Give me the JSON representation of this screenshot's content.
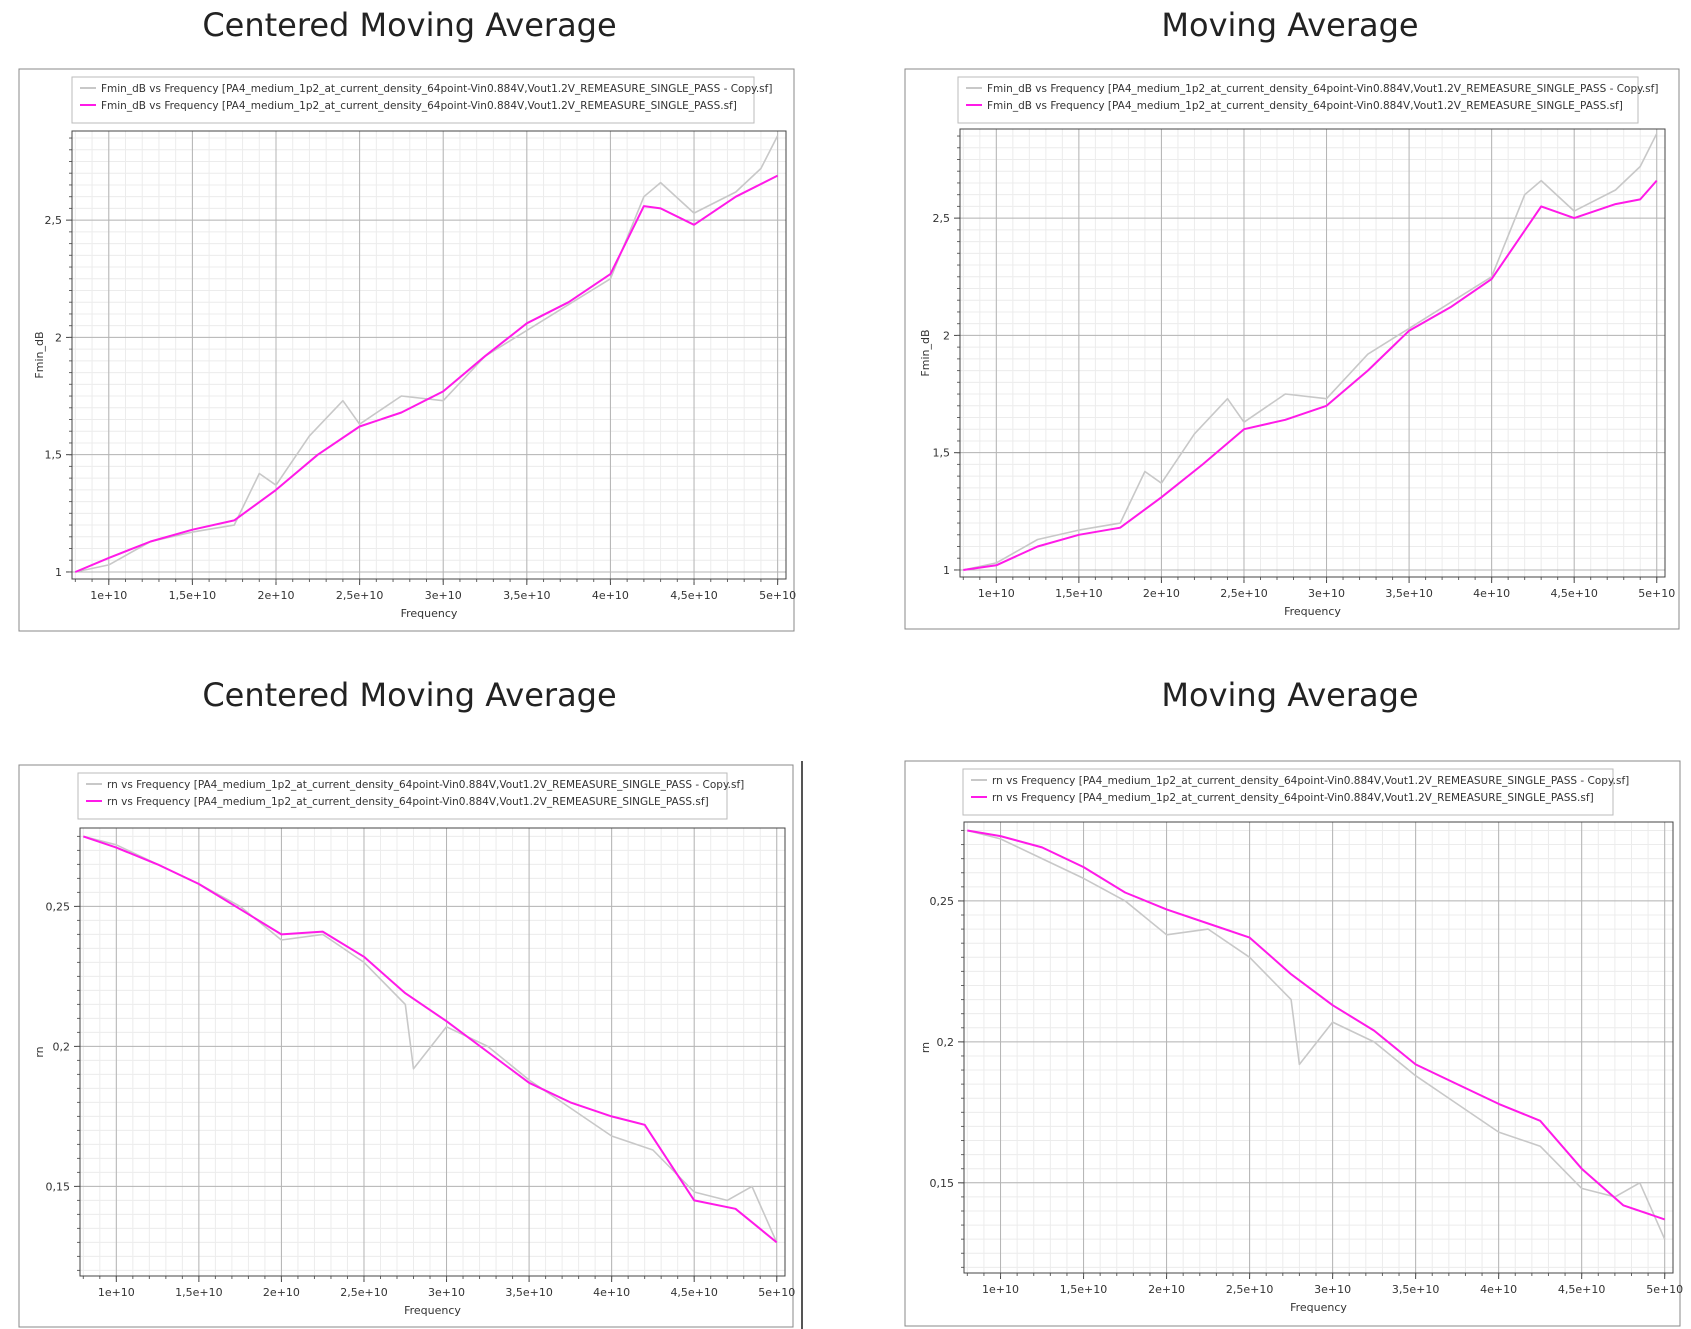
{
  "chart_data": [
    {
      "type": "line",
      "title": "Centered Moving Average",
      "xlabel": "Frequency",
      "ylabel": "Fmin_dB",
      "xlim": [
        7800000000.0,
        50500000000.0
      ],
      "ylim": [
        0.97,
        2.88
      ],
      "x_ticks": [
        "1e+10",
        "1,5e+10",
        "2e+10",
        "2,5e+10",
        "3e+10",
        "3,5e+10",
        "4e+10",
        "4,5e+10",
        "5e+10"
      ],
      "y_ticks": [
        "1",
        "1,5",
        "2",
        "2,5"
      ],
      "grid": true,
      "legend_position": "top-left",
      "series": [
        {
          "name": "Fmin_dB vs Frequency [PA4_medium_1p2_at_current_density_64point-Vin0.884V,Vout1.2V_REMEASURE_SINGLE_PASS - Copy.sf]",
          "color": "#c8c8c8",
          "x": [
            8000000000.0,
            10000000000.0,
            12500000000.0,
            15000000000.0,
            17500000000.0,
            19000000000.0,
            20000000000.0,
            22000000000.0,
            24000000000.0,
            25000000000.0,
            27500000000.0,
            30000000000.0,
            32500000000.0,
            35000000000.0,
            37500000000.0,
            40000000000.0,
            42000000000.0,
            43000000000.0,
            45000000000.0,
            47500000000.0,
            49000000000.0,
            50000000000.0
          ],
          "y": [
            1.0,
            1.03,
            1.13,
            1.17,
            1.2,
            1.42,
            1.37,
            1.58,
            1.73,
            1.63,
            1.75,
            1.73,
            1.92,
            2.03,
            2.14,
            2.25,
            2.6,
            2.66,
            2.53,
            2.62,
            2.72,
            2.86
          ]
        },
        {
          "name": "Fmin_dB vs Frequency [PA4_medium_1p2_at_current_density_64point-Vin0.884V,Vout1.2V_REMEASURE_SINGLE_PASS.sf]",
          "color": "#ff1ae8",
          "x": [
            8000000000.0,
            10000000000.0,
            12500000000.0,
            15000000000.0,
            17500000000.0,
            20000000000.0,
            22500000000.0,
            25000000000.0,
            27500000000.0,
            30000000000.0,
            32500000000.0,
            35000000000.0,
            37500000000.0,
            40000000000.0,
            42000000000.0,
            43000000000.0,
            45000000000.0,
            47500000000.0,
            50000000000.0
          ],
          "y": [
            1.0,
            1.06,
            1.13,
            1.18,
            1.22,
            1.35,
            1.5,
            1.62,
            1.68,
            1.77,
            1.92,
            2.06,
            2.15,
            2.27,
            2.56,
            2.55,
            2.48,
            2.6,
            2.69
          ]
        }
      ]
    },
    {
      "type": "line",
      "title": "Moving Average",
      "xlabel": "Frequency",
      "ylabel": "Fmin_dB",
      "xlim": [
        7800000000.0,
        50500000000.0
      ],
      "ylim": [
        0.97,
        2.88
      ],
      "x_ticks": [
        "1e+10",
        "1,5e+10",
        "2e+10",
        "2,5e+10",
        "3e+10",
        "3,5e+10",
        "4e+10",
        "4,5e+10",
        "5e+10"
      ],
      "y_ticks": [
        "1",
        "1,5",
        "2",
        "2,5"
      ],
      "grid": true,
      "legend_position": "top-left",
      "series": [
        {
          "name": "Fmin_dB vs Frequency [PA4_medium_1p2_at_current_density_64point-Vin0.884V,Vout1.2V_REMEASURE_SINGLE_PASS - Copy.sf]",
          "color": "#c8c8c8",
          "x": [
            8000000000.0,
            10000000000.0,
            12500000000.0,
            15000000000.0,
            17500000000.0,
            19000000000.0,
            20000000000.0,
            22000000000.0,
            24000000000.0,
            25000000000.0,
            27500000000.0,
            30000000000.0,
            32500000000.0,
            35000000000.0,
            37500000000.0,
            40000000000.0,
            42000000000.0,
            43000000000.0,
            45000000000.0,
            47500000000.0,
            49000000000.0,
            50000000000.0
          ],
          "y": [
            1.0,
            1.03,
            1.13,
            1.17,
            1.2,
            1.42,
            1.37,
            1.58,
            1.73,
            1.63,
            1.75,
            1.73,
            1.92,
            2.03,
            2.14,
            2.25,
            2.6,
            2.66,
            2.53,
            2.62,
            2.72,
            2.86
          ]
        },
        {
          "name": "Fmin_dB vs Frequency [PA4_medium_1p2_at_current_density_64point-Vin0.884V,Vout1.2V_REMEASURE_SINGLE_PASS.sf]",
          "color": "#ff1ae8",
          "x": [
            8000000000.0,
            10000000000.0,
            12500000000.0,
            15000000000.0,
            17500000000.0,
            20000000000.0,
            22500000000.0,
            25000000000.0,
            27500000000.0,
            30000000000.0,
            32500000000.0,
            35000000000.0,
            37500000000.0,
            40000000000.0,
            43000000000.0,
            45000000000.0,
            47500000000.0,
            49000000000.0,
            50000000000.0
          ],
          "y": [
            1.0,
            1.02,
            1.1,
            1.15,
            1.18,
            1.31,
            1.45,
            1.6,
            1.64,
            1.7,
            1.85,
            2.02,
            2.12,
            2.24,
            2.55,
            2.5,
            2.56,
            2.58,
            2.66
          ]
        }
      ]
    },
    {
      "type": "line",
      "title": "Centered Moving Average",
      "xlabel": "Frequency",
      "ylabel": "rn",
      "xlim": [
        7800000000.0,
        50500000000.0
      ],
      "ylim": [
        0.118,
        0.278
      ],
      "x_ticks": [
        "1e+10",
        "1,5e+10",
        "2e+10",
        "2,5e+10",
        "3e+10",
        "3,5e+10",
        "4e+10",
        "4,5e+10",
        "5e+10"
      ],
      "y_ticks": [
        "0,15",
        "0,2",
        "0,25"
      ],
      "grid": true,
      "legend_position": "top-left",
      "series": [
        {
          "name": "rn vs Frequency [PA4_medium_1p2_at_current_density_64point-Vin0.884V,Vout1.2V_REMEASURE_SINGLE_PASS - Copy.sf]",
          "color": "#c8c8c8",
          "x": [
            8000000000.0,
            10000000000.0,
            12500000000.0,
            15000000000.0,
            17500000000.0,
            20000000000.0,
            22500000000.0,
            25000000000.0,
            27500000000.0,
            28000000000.0,
            30000000000.0,
            32500000000.0,
            35000000000.0,
            37500000000.0,
            40000000000.0,
            42500000000.0,
            45000000000.0,
            47000000000.0,
            48500000000.0,
            50000000000.0
          ],
          "y": [
            0.275,
            0.272,
            0.265,
            0.258,
            0.25,
            0.238,
            0.24,
            0.23,
            0.215,
            0.192,
            0.207,
            0.2,
            0.188,
            0.178,
            0.168,
            0.163,
            0.148,
            0.145,
            0.15,
            0.13
          ]
        },
        {
          "name": "rn vs Frequency [PA4_medium_1p2_at_current_density_64point-Vin0.884V,Vout1.2V_REMEASURE_SINGLE_PASS.sf]",
          "color": "#ff1ae8",
          "x": [
            8000000000.0,
            10000000000.0,
            12500000000.0,
            15000000000.0,
            17500000000.0,
            20000000000.0,
            22500000000.0,
            25000000000.0,
            27500000000.0,
            30000000000.0,
            32500000000.0,
            35000000000.0,
            37500000000.0,
            40000000000.0,
            42000000000.0,
            45000000000.0,
            47500000000.0,
            50000000000.0
          ],
          "y": [
            0.275,
            0.271,
            0.265,
            0.258,
            0.249,
            0.24,
            0.241,
            0.232,
            0.219,
            0.209,
            0.198,
            0.187,
            0.18,
            0.175,
            0.172,
            0.145,
            0.142,
            0.13
          ]
        }
      ]
    },
    {
      "type": "line",
      "title": "Moving Average",
      "xlabel": "Frequency",
      "ylabel": "rn",
      "xlim": [
        7800000000.0,
        50500000000.0
      ],
      "ylim": [
        0.118,
        0.278
      ],
      "x_ticks": [
        "1e+10",
        "1,5e+10",
        "2e+10",
        "2,5e+10",
        "3e+10",
        "3,5e+10",
        "4e+10",
        "4,5e+10",
        "5e+10"
      ],
      "y_ticks": [
        "0,15",
        "0,2",
        "0,25"
      ],
      "grid": true,
      "legend_position": "top-left",
      "series": [
        {
          "name": "rn vs Frequency [PA4_medium_1p2_at_current_density_64point-Vin0.884V,Vout1.2V_REMEASURE_SINGLE_PASS - Copy.sf]",
          "color": "#c8c8c8",
          "x": [
            8000000000.0,
            10000000000.0,
            12500000000.0,
            15000000000.0,
            17500000000.0,
            20000000000.0,
            22500000000.0,
            25000000000.0,
            27500000000.0,
            28000000000.0,
            30000000000.0,
            32500000000.0,
            35000000000.0,
            37500000000.0,
            40000000000.0,
            42500000000.0,
            45000000000.0,
            47000000000.0,
            48500000000.0,
            50000000000.0
          ],
          "y": [
            0.275,
            0.272,
            0.265,
            0.258,
            0.25,
            0.238,
            0.24,
            0.23,
            0.215,
            0.192,
            0.207,
            0.2,
            0.188,
            0.178,
            0.168,
            0.163,
            0.148,
            0.145,
            0.15,
            0.13
          ]
        },
        {
          "name": "rn vs Frequency [PA4_medium_1p2_at_current_density_64point-Vin0.884V,Vout1.2V_REMEASURE_SINGLE_PASS.sf]",
          "color": "#ff1ae8",
          "x": [
            8000000000.0,
            10000000000.0,
            12500000000.0,
            15000000000.0,
            17500000000.0,
            20000000000.0,
            22500000000.0,
            25000000000.0,
            27500000000.0,
            30000000000.0,
            32500000000.0,
            35000000000.0,
            37500000000.0,
            40000000000.0,
            42500000000.0,
            45000000000.0,
            47500000000.0,
            50000000000.0
          ],
          "y": [
            0.275,
            0.273,
            0.269,
            0.262,
            0.253,
            0.247,
            0.242,
            0.237,
            0.224,
            0.213,
            0.204,
            0.192,
            0.185,
            0.178,
            0.172,
            0.155,
            0.142,
            0.137
          ]
        }
      ]
    }
  ]
}
